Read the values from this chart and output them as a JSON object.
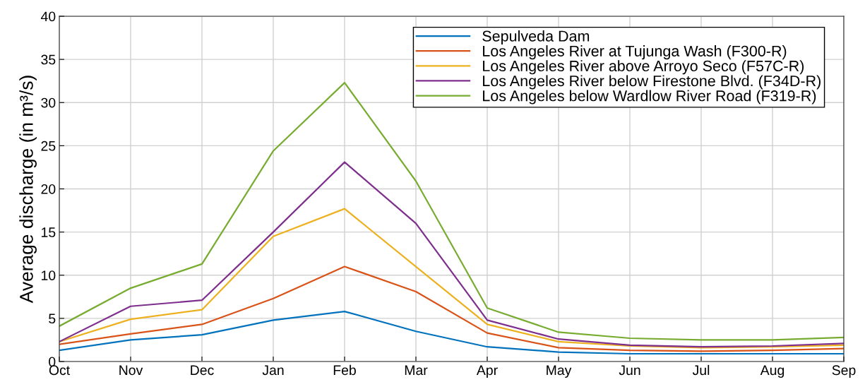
{
  "chart_data": {
    "type": "line",
    "ylabel": "Average discharge (in m³/s)",
    "categories": [
      "Oct",
      "Nov",
      "Dec",
      "Jan",
      "Feb",
      "Mar",
      "Apr",
      "May",
      "Jun",
      "Jul",
      "Aug",
      "Sep"
    ],
    "ylim": [
      0,
      40
    ],
    "yticks": [
      0,
      5,
      10,
      15,
      20,
      25,
      30,
      35,
      40
    ],
    "grid": true,
    "legend": "top right",
    "marker": "none",
    "line_style": "solid",
    "series": [
      {
        "name": "Sepulveda Dam",
        "color": "#0072bd",
        "values": [
          1.3,
          2.5,
          3.1,
          4.8,
          5.8,
          3.5,
          1.7,
          1.1,
          0.9,
          0.9,
          0.9,
          0.9
        ]
      },
      {
        "name": "Los Angeles River at Tujunga Wash (F300-R)",
        "color": "#d95319",
        "values": [
          2.0,
          3.2,
          4.3,
          7.3,
          11.0,
          8.1,
          3.3,
          1.6,
          1.3,
          1.2,
          1.3,
          1.5
        ]
      },
      {
        "name": "Los Angeles River above Arroyo Seco (F57C-R)",
        "color": "#edb120",
        "values": [
          2.3,
          4.9,
          6.0,
          14.5,
          17.7,
          11.0,
          4.3,
          2.3,
          1.8,
          1.6,
          1.7,
          1.9
        ]
      },
      {
        "name": "Los Angeles River below Firestone Blvd. (F34D-R)",
        "color": "#7e2f8e",
        "values": [
          2.3,
          6.4,
          7.1,
          15.0,
          23.1,
          16.0,
          4.8,
          2.6,
          1.9,
          1.7,
          1.8,
          2.1
        ]
      },
      {
        "name": "Los Angeles below Wardlow River Road (F319-R)",
        "color": "#77ac30",
        "values": [
          4.1,
          8.5,
          11.3,
          24.4,
          32.3,
          20.9,
          6.2,
          3.4,
          2.7,
          2.5,
          2.5,
          2.8
        ]
      }
    ]
  }
}
